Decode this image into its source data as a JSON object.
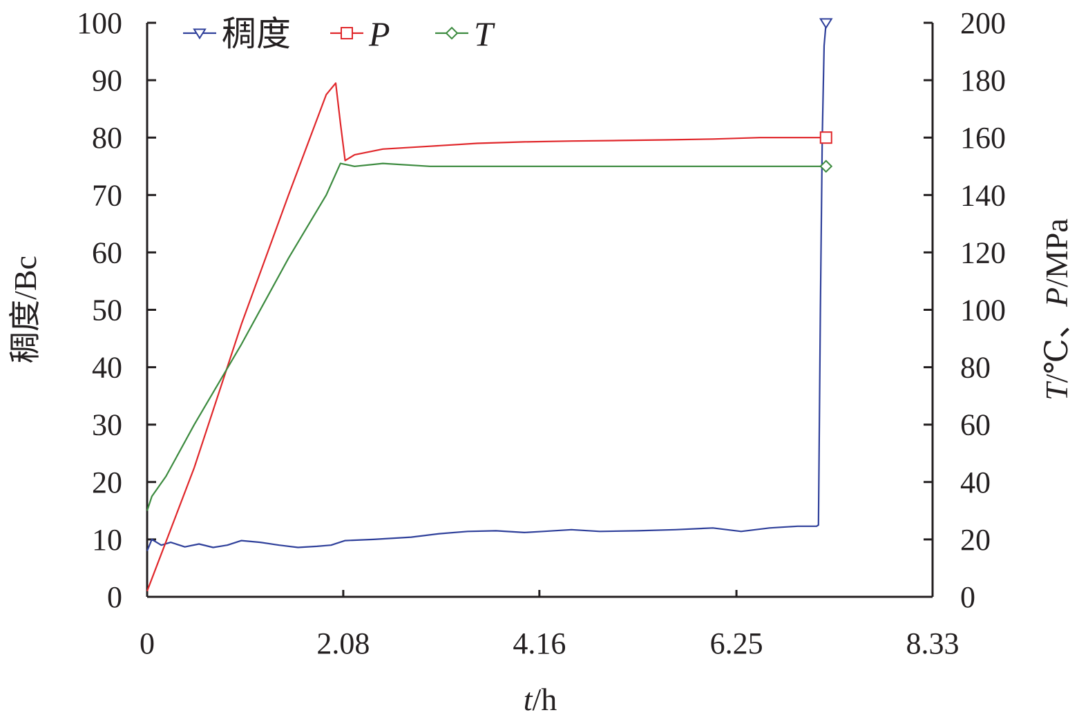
{
  "chart_data": {
    "type": "line",
    "xlabel": {
      "var": "t",
      "unit": "/h"
    },
    "ylabel_left": "稠度/Bc",
    "ylabel_right": {
      "var1": "T",
      "part1": "/℃、",
      "var2": "P",
      "part2": "/MPa"
    },
    "xlim": [
      0,
      8.33
    ],
    "ylim_left": [
      0,
      100
    ],
    "ylim_right": [
      0,
      200
    ],
    "x_ticks": [
      "0",
      "2.08",
      "4.16",
      "6.25",
      "8.33"
    ],
    "y_left_ticks": [
      "0",
      "10",
      "20",
      "30",
      "40",
      "50",
      "60",
      "70",
      "80",
      "90",
      "100"
    ],
    "y_right_ticks": [
      "0",
      "20",
      "40",
      "60",
      "80",
      "100",
      "120",
      "140",
      "160",
      "180",
      "200"
    ],
    "legend_position": "top-left",
    "grid": false,
    "series": [
      {
        "name": "稠度",
        "italic": false,
        "axis": "left",
        "color": "#2e3f9a",
        "marker": "triangle-down",
        "x": [
          0,
          0.05,
          0.15,
          0.25,
          0.4,
          0.55,
          0.7,
          0.85,
          1.0,
          1.2,
          1.4,
          1.6,
          1.8,
          1.95,
          2.1,
          2.4,
          2.8,
          3.1,
          3.4,
          3.7,
          4.0,
          4.2,
          4.5,
          4.8,
          5.2,
          5.6,
          6.0,
          6.3,
          6.6,
          6.9,
          7.1,
          7.12,
          7.14,
          7.16,
          7.18,
          7.2
        ],
        "y": [
          8,
          10,
          9,
          9.5,
          8.7,
          9.2,
          8.6,
          9.0,
          9.8,
          9.5,
          9.0,
          8.6,
          8.8,
          9.0,
          9.8,
          10.0,
          10.4,
          11.0,
          11.4,
          11.5,
          11.2,
          11.4,
          11.7,
          11.4,
          11.5,
          11.7,
          12.0,
          11.4,
          12.0,
          12.3,
          12.3,
          12.5,
          50,
          80,
          96,
          100
        ]
      },
      {
        "name": "P",
        "italic": true,
        "axis": "right",
        "color": "#e0262a",
        "marker": "square",
        "x": [
          0,
          0.5,
          1.0,
          1.5,
          1.9,
          2.0,
          2.05,
          2.1,
          2.2,
          2.5,
          3.0,
          3.5,
          4.0,
          4.5,
          5.0,
          5.5,
          6.0,
          6.5,
          7.0,
          7.2
        ],
        "y": [
          2,
          45,
          95,
          140,
          175,
          179,
          165,
          152,
          154,
          156,
          157,
          158,
          158.5,
          158.8,
          159,
          159.2,
          159.5,
          160,
          160,
          160
        ]
      },
      {
        "name": "T",
        "italic": true,
        "axis": "right",
        "color": "#3b8a3e",
        "marker": "diamond",
        "x": [
          0,
          0.05,
          0.2,
          0.5,
          1.0,
          1.5,
          1.9,
          2.05,
          2.2,
          2.5,
          3.0,
          4.0,
          5.0,
          6.0,
          7.0,
          7.2
        ],
        "y": [
          30,
          35,
          42,
          60,
          88,
          118,
          140,
          151,
          150,
          151,
          150,
          150,
          150,
          150,
          150,
          150
        ]
      }
    ]
  }
}
